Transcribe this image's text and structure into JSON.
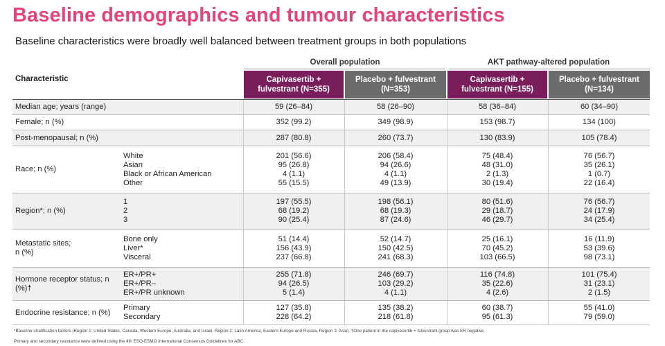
{
  "title": "Baseline demographics and tumour characteristics",
  "subtitle": "Baseline characteristics were broadly well balanced between treatment groups in both populations",
  "groups": {
    "overall": "Overall population",
    "akt": "AKT pathway-altered population"
  },
  "columns": {
    "characteristic": "Characteristic",
    "cap_overall": [
      "Capivasertib +",
      "fulvestrant (N=355)"
    ],
    "pbo_overall": [
      "Placebo + fulvestrant",
      "(N=353)"
    ],
    "cap_akt": [
      "Capivasertib +",
      "fulvestrant (N=155)"
    ],
    "pbo_akt": [
      "Placebo + fulvestrant",
      "(N=134)"
    ]
  },
  "rows": [
    {
      "label": "Median age; years (range)",
      "shade": true,
      "sub": [
        ""
      ],
      "v": [
        [
          "59 (26–84)"
        ],
        [
          "58 (26–90)"
        ],
        [
          "58 (36–84)"
        ],
        [
          "60 (34–90)"
        ]
      ]
    },
    {
      "label": "Female; n (%)",
      "shade": false,
      "sub": [
        ""
      ],
      "v": [
        [
          "352 (99.2)"
        ],
        [
          "349 (98.9)"
        ],
        [
          "153 (98.7)"
        ],
        [
          "134 (100)"
        ]
      ]
    },
    {
      "label": "Post-menopausal; n (%)",
      "shade": true,
      "sub": [
        ""
      ],
      "v": [
        [
          "287 (80.8)"
        ],
        [
          "260 (73.7)"
        ],
        [
          "130 (83.9)"
        ],
        [
          "105 (78.4)"
        ]
      ]
    },
    {
      "label": "Race; n (%)",
      "shade": false,
      "sub": [
        "White",
        "Asian",
        "Black or African American",
        "Other"
      ],
      "v": [
        [
          "201 (56.6)",
          "95 (26.8)",
          "4 (1.1)",
          "55 (15.5)"
        ],
        [
          "206 (58.4)",
          "94 (26.6)",
          "4 (1.1)",
          "49 (13.9)"
        ],
        [
          "75 (48.4)",
          "48 (31.0)",
          "2 (1.3)",
          "30 (19.4)"
        ],
        [
          "76 (56.7)",
          "35 (26.1)",
          "1 (0.7)",
          "22 (16.4)"
        ]
      ]
    },
    {
      "label": "Region*; n (%)",
      "shade": true,
      "sub": [
        "1",
        "2",
        "3"
      ],
      "v": [
        [
          "197 (55.5)",
          "68 (19.2)",
          "90 (25.4)"
        ],
        [
          "198 (56.1)",
          "68 (19.3)",
          "87 (24.6)"
        ],
        [
          "80 (51.6)",
          "29 (18.7)",
          "46 (29.7)"
        ],
        [
          "76 (56.7)",
          "24 (17.9)",
          "34 (25.4)"
        ]
      ]
    },
    {
      "label": "Metastatic sites;\nn (%)",
      "shade": false,
      "sub": [
        "Bone only",
        "Liver*",
        "Visceral"
      ],
      "v": [
        [
          "51 (14.4)",
          "156 (43.9)",
          "237 (66.8)"
        ],
        [
          "52 (14.7)",
          "150 (42.5)",
          "241 (68.3)"
        ],
        [
          "25 (16.1)",
          "70 (45.2)",
          "103 (66.5)"
        ],
        [
          "16 (11.9)",
          "53 (39.6)",
          "98 (73.1)"
        ]
      ]
    },
    {
      "label": "Hormone receptor status; n\n(%)†",
      "shade": true,
      "sub": [
        "ER+/PR+",
        "ER+/PR–",
        "ER+/PR unknown"
      ],
      "v": [
        [
          "255 (71.8)",
          "94 (26.5)",
          "5 (1.4)"
        ],
        [
          "246 (69.7)",
          "103 (29.2)",
          "4 (1.1)"
        ],
        [
          "116 (74.8)",
          "35 (22.6)",
          "4 (2.6)"
        ],
        [
          "101 (75.4)",
          "31 (23.1)",
          "2 (1.5)"
        ]
      ]
    },
    {
      "label": "Endocrine resistance; n (%)",
      "shade": false,
      "sub": [
        "Primary",
        "Secondary"
      ],
      "v": [
        [
          "127 (35.8)",
          "228 (64.2)"
        ],
        [
          "135 (38.2)",
          "218 (61.8)"
        ],
        [
          "60 (38.7)",
          "95 (61.3)"
        ],
        [
          "55 (41.0)",
          "79 (59.0)"
        ]
      ]
    }
  ],
  "footnotes": [
    "*Baseline stratification factors (Region 1: United States, Canada, Western Europe, Australia, and Israel, Region 2: Latin America, Eastern Europe and Russia, Region 3: Asia). †One patient in the capivasertib + fulvestrant group was ER negative.",
    "Primary and secondary resistance were defined using the 4th ESO-ESMO International Consensus Guidelines for ABC."
  ]
}
